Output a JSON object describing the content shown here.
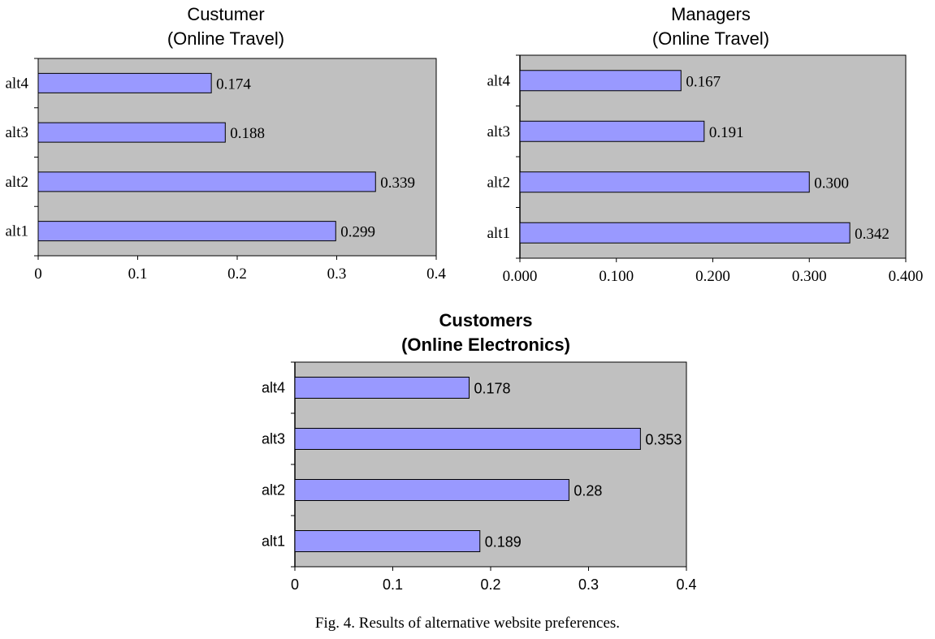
{
  "chart_data": [
    {
      "type": "bar",
      "orientation": "horizontal",
      "title_lines": [
        "Custumer",
        "(Online Travel)"
      ],
      "categories": [
        "alt1",
        "alt2",
        "alt3",
        "alt4"
      ],
      "values": [
        0.299,
        0.339,
        0.188,
        0.174
      ],
      "value_labels": [
        "0.299",
        "0.339",
        "0.188",
        "0.174"
      ],
      "xticks": [
        "0",
        "0.1",
        "0.2",
        "0.3",
        "0.4"
      ],
      "xlim": [
        0,
        0.4
      ],
      "grid": false,
      "colors": {
        "bar": "#9999ff",
        "plot_bg": "#c0c0c0"
      }
    },
    {
      "type": "bar",
      "orientation": "horizontal",
      "title_lines": [
        "Managers",
        "(Online Travel)"
      ],
      "categories": [
        "alt1",
        "alt2",
        "alt3",
        "alt4"
      ],
      "values": [
        0.342,
        0.3,
        0.191,
        0.167
      ],
      "value_labels": [
        "0.342",
        "0.300",
        "0.191",
        "0.167"
      ],
      "xticks": [
        "0.000",
        "0.100",
        "0.200",
        "0.300",
        "0.400"
      ],
      "xlim": [
        0,
        0.4
      ],
      "grid": false,
      "colors": {
        "bar": "#9999ff",
        "plot_bg": "#c0c0c0"
      }
    },
    {
      "type": "bar",
      "orientation": "horizontal",
      "title_lines": [
        "Customers",
        "(Online Electronics)"
      ],
      "categories": [
        "alt1",
        "alt2",
        "alt3",
        "alt4"
      ],
      "values": [
        0.189,
        0.28,
        0.353,
        0.178
      ],
      "value_labels": [
        "0.189",
        "0.28",
        "0.353",
        "0.178"
      ],
      "xticks": [
        "0",
        "0.1",
        "0.2",
        "0.3",
        "0.4"
      ],
      "xlim": [
        0,
        0.4
      ],
      "grid": false,
      "colors": {
        "bar": "#9999ff",
        "plot_bg": "#c0c0c0"
      }
    }
  ],
  "caption": "Fig. 4. Results of alternative website preferences."
}
